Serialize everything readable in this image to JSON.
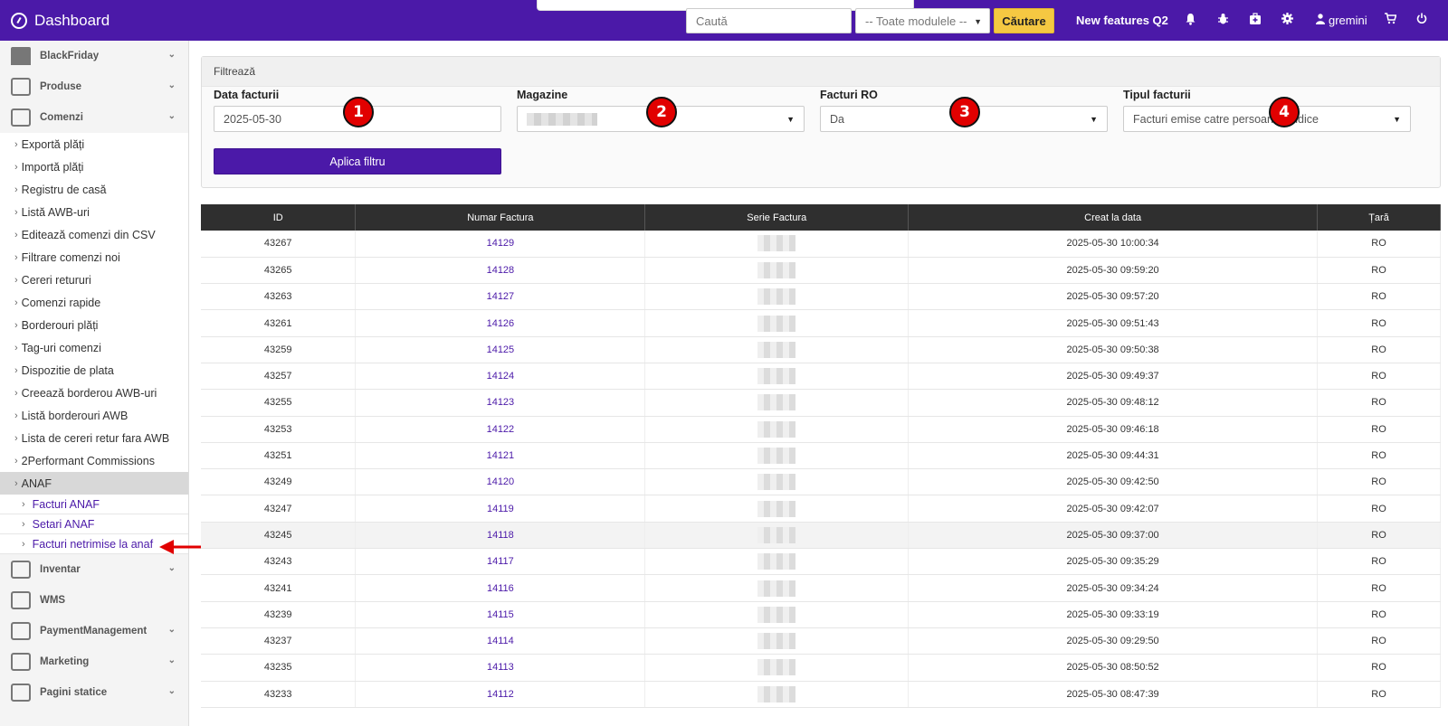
{
  "app": {
    "title": "Dashboard"
  },
  "topbar": {
    "search_placeholder": "Caută",
    "module_select": "-- Toate modulele --",
    "search_button": "Căutare",
    "new_features": "New features Q2",
    "user": "gremini",
    "icons": [
      "bell-icon",
      "bug-icon",
      "medkit-icon",
      "gear-icon",
      "user-icon",
      "cart-icon",
      "power-icon"
    ]
  },
  "sidebar": {
    "sections_top": [
      {
        "label": "BlackFriday",
        "icon": "tshirt-icon"
      },
      {
        "label": "Produse",
        "icon": "products-icon"
      },
      {
        "label": "Comenzi",
        "icon": "orders-icon"
      }
    ],
    "comenzi_items": [
      "Exportă plăți",
      "Importă plăți",
      "Registru de casă",
      "Listă AWB-uri",
      "Editează comenzi din CSV",
      "Filtrare comenzi noi",
      "Cereri retururi",
      "Comenzi rapide",
      "Borderouri plăți",
      "Tag-uri comenzi",
      "Dispozitie de plata",
      "Creează borderou AWB-uri",
      "Listă borderouri AWB",
      "Lista de cereri retur fara AWB",
      "2Performant Commissions",
      "ANAF"
    ],
    "anaf_items": [
      "Facturi ANAF",
      "Setari ANAF",
      "Facturi netrimise la anaf"
    ],
    "sections_bottom": [
      {
        "label": "Inventar",
        "icon": "inventory-icon"
      },
      {
        "label": "WMS",
        "icon": "warehouse-icon"
      },
      {
        "label": "PaymentManagement",
        "icon": "payment-icon"
      },
      {
        "label": "Marketing",
        "icon": "marketing-icon"
      },
      {
        "label": "Pagini statice",
        "icon": "pages-icon"
      }
    ]
  },
  "filter": {
    "title": "Filtrează",
    "fields": [
      {
        "label": "Data facturii",
        "value": "2025-05-30"
      },
      {
        "label": "Magazine",
        "value": ""
      },
      {
        "label": "Facturi RO",
        "value": "Da"
      },
      {
        "label": "Tipul facturii",
        "value": "Facturi emise catre persoane juridice"
      }
    ],
    "apply_button": "Aplica filtru",
    "badges": [
      "1",
      "2",
      "3",
      "4"
    ]
  },
  "table": {
    "headers": [
      "ID",
      "Numar Factura",
      "Serie Factura",
      "Creat la data",
      "Țară"
    ],
    "rows": [
      {
        "id": "43267",
        "numar": "14129",
        "data": "2025-05-30 10:00:34",
        "tara": "RO"
      },
      {
        "id": "43265",
        "numar": "14128",
        "data": "2025-05-30 09:59:20",
        "tara": "RO"
      },
      {
        "id": "43263",
        "numar": "14127",
        "data": "2025-05-30 09:57:20",
        "tara": "RO"
      },
      {
        "id": "43261",
        "numar": "14126",
        "data": "2025-05-30 09:51:43",
        "tara": "RO"
      },
      {
        "id": "43259",
        "numar": "14125",
        "data": "2025-05-30 09:50:38",
        "tara": "RO"
      },
      {
        "id": "43257",
        "numar": "14124",
        "data": "2025-05-30 09:49:37",
        "tara": "RO"
      },
      {
        "id": "43255",
        "numar": "14123",
        "data": "2025-05-30 09:48:12",
        "tara": "RO"
      },
      {
        "id": "43253",
        "numar": "14122",
        "data": "2025-05-30 09:46:18",
        "tara": "RO"
      },
      {
        "id": "43251",
        "numar": "14121",
        "data": "2025-05-30 09:44:31",
        "tara": "RO"
      },
      {
        "id": "43249",
        "numar": "14120",
        "data": "2025-05-30 09:42:50",
        "tara": "RO"
      },
      {
        "id": "43247",
        "numar": "14119",
        "data": "2025-05-30 09:42:07",
        "tara": "RO"
      },
      {
        "id": "43245",
        "numar": "14118",
        "data": "2025-05-30 09:37:00",
        "tara": "RO"
      },
      {
        "id": "43243",
        "numar": "14117",
        "data": "2025-05-30 09:35:29",
        "tara": "RO"
      },
      {
        "id": "43241",
        "numar": "14116",
        "data": "2025-05-30 09:34:24",
        "tara": "RO"
      },
      {
        "id": "43239",
        "numar": "14115",
        "data": "2025-05-30 09:33:19",
        "tara": "RO"
      },
      {
        "id": "43237",
        "numar": "14114",
        "data": "2025-05-30 09:29:50",
        "tara": "RO"
      },
      {
        "id": "43235",
        "numar": "14113",
        "data": "2025-05-30 08:50:52",
        "tara": "RO"
      },
      {
        "id": "43233",
        "numar": "14112",
        "data": "2025-05-30 08:47:39",
        "tara": "RO"
      }
    ]
  },
  "colors": {
    "brand": "#4b19a8",
    "accent": "#f5c842",
    "annotation": "#e10000"
  }
}
